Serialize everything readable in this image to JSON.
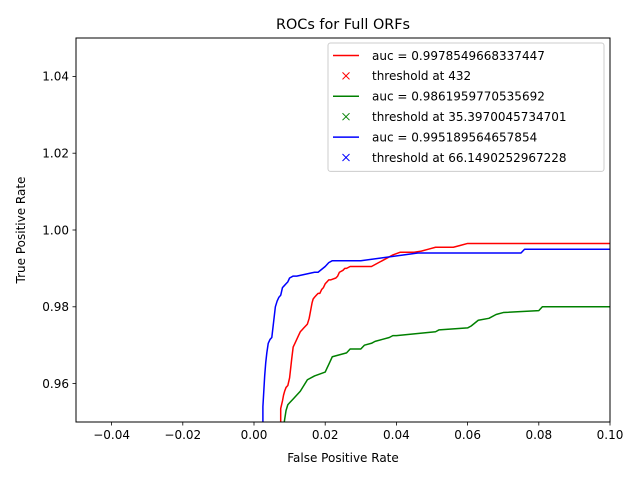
{
  "chart_data": {
    "type": "line",
    "title": "ROCs for Full ORFs",
    "xlabel": "False Positive Rate",
    "ylabel": "True Positive Rate",
    "xlim": [
      -0.05,
      0.1
    ],
    "ylim": [
      0.95,
      1.05
    ],
    "xticks": [
      "−0.04",
      "−0.02",
      "0.00",
      "0.02",
      "0.04",
      "0.06",
      "0.08",
      "0.10"
    ],
    "xtick_values": [
      -0.04,
      -0.02,
      0.0,
      0.02,
      0.04,
      0.06,
      0.08,
      0.1
    ],
    "yticks": [
      "0.96",
      "0.98",
      "1.00",
      "1.02",
      "1.04"
    ],
    "ytick_values": [
      0.96,
      0.98,
      1.0,
      1.02,
      1.04
    ],
    "grid": false,
    "legend_placement": "top-right",
    "legend": [
      {
        "label": "auc = 0.9978549668337447",
        "color": "#ff0000",
        "marker": "line"
      },
      {
        "label": "threshold at 432",
        "color": "#ff0000",
        "marker": "x"
      },
      {
        "label": "auc = 0.9861959770535692",
        "color": "#008000",
        "marker": "line"
      },
      {
        "label": "threshold at 35.3970045734701",
        "color": "#008000",
        "marker": "x"
      },
      {
        "label": "auc = 0.995189564657854",
        "color": "#0000ff",
        "marker": "line"
      },
      {
        "label": "threshold at 66.1490252967228",
        "color": "#0000ff",
        "marker": "x"
      }
    ],
    "series": [
      {
        "color": "#ff0000",
        "x": [
          0.0075,
          0.0075,
          0.008,
          0.0083,
          0.0086,
          0.009,
          0.0095,
          0.01,
          0.0103,
          0.0106,
          0.011,
          0.0115,
          0.012,
          0.0125,
          0.013,
          0.0135,
          0.014,
          0.0145,
          0.015,
          0.0155,
          0.016,
          0.0163,
          0.0166,
          0.017,
          0.0175,
          0.018,
          0.0185,
          0.019,
          0.0195,
          0.02,
          0.0205,
          0.021,
          0.0215,
          0.023,
          0.0235,
          0.024,
          0.025,
          0.0255,
          0.026,
          0.027,
          0.028,
          0.033,
          0.035,
          0.037,
          0.039,
          0.041,
          0.043,
          0.045,
          0.047,
          0.049,
          0.051,
          0.056,
          0.058,
          0.06,
          0.08,
          0.1
        ],
        "y": [
          0.95,
          0.9535,
          0.9555,
          0.957,
          0.958,
          0.959,
          0.9595,
          0.9615,
          0.964,
          0.9665,
          0.9695,
          0.9705,
          0.9715,
          0.9725,
          0.9735,
          0.974,
          0.9745,
          0.975,
          0.9755,
          0.977,
          0.9795,
          0.981,
          0.982,
          0.9825,
          0.983,
          0.9835,
          0.9835,
          0.9845,
          0.985,
          0.986,
          0.9865,
          0.987,
          0.987,
          0.9875,
          0.988,
          0.989,
          0.9895,
          0.99,
          0.99,
          0.9905,
          0.9905,
          0.9905,
          0.9915,
          0.9925,
          0.9935,
          0.9942,
          0.9942,
          0.9942,
          0.9945,
          0.995,
          0.9955,
          0.9955,
          0.996,
          0.9965,
          0.9965,
          0.9965
        ]
      },
      {
        "color": "#008000",
        "x": [
          0.0085,
          0.009,
          0.0095,
          0.01,
          0.011,
          0.012,
          0.013,
          0.014,
          0.015,
          0.017,
          0.02,
          0.0205,
          0.021,
          0.022,
          0.026,
          0.027,
          0.03,
          0.031,
          0.033,
          0.034,
          0.036,
          0.038,
          0.039,
          0.04,
          0.051,
          0.052,
          0.06,
          0.061,
          0.063,
          0.066,
          0.068,
          0.07,
          0.08,
          0.081,
          0.1
        ],
        "y": [
          0.95,
          0.953,
          0.9545,
          0.955,
          0.956,
          0.957,
          0.958,
          0.9595,
          0.961,
          0.962,
          0.963,
          0.964,
          0.965,
          0.967,
          0.968,
          0.969,
          0.969,
          0.97,
          0.9705,
          0.971,
          0.9715,
          0.972,
          0.9725,
          0.9725,
          0.9735,
          0.974,
          0.9745,
          0.975,
          0.9765,
          0.977,
          0.978,
          0.9785,
          0.979,
          0.98,
          0.98
        ]
      },
      {
        "color": "#0000ff",
        "x": [
          0.0025,
          0.0025,
          0.003,
          0.0033,
          0.0036,
          0.004,
          0.0045,
          0.005,
          0.0055,
          0.006,
          0.0065,
          0.007,
          0.0075,
          0.008,
          0.0085,
          0.009,
          0.0095,
          0.01,
          0.011,
          0.012,
          0.017,
          0.018,
          0.02,
          0.021,
          0.022,
          0.03,
          0.046,
          0.047,
          0.075,
          0.076,
          0.1
        ],
        "y": [
          0.95,
          0.954,
          0.962,
          0.9655,
          0.968,
          0.9705,
          0.9715,
          0.972,
          0.976,
          0.98,
          0.9815,
          0.9825,
          0.983,
          0.985,
          0.9855,
          0.986,
          0.9865,
          0.9875,
          0.988,
          0.988,
          0.989,
          0.989,
          0.9905,
          0.9915,
          0.992,
          0.992,
          0.994,
          0.994,
          0.994,
          0.995,
          0.995
        ]
      }
    ]
  }
}
